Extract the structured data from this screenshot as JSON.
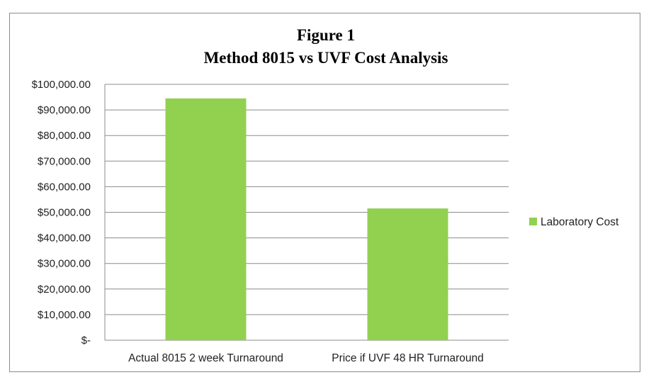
{
  "chart_data": {
    "type": "bar",
    "title": "Figure 1",
    "subtitle": "Method 8015 vs UVF Cost Analysis",
    "categories": [
      "Actual 8015 2 week Turnaround",
      "Price if UVF 48 HR Turnaround"
    ],
    "series": [
      {
        "name": "Laboratory Cost",
        "values": [
          94500,
          51500
        ],
        "color": "#92d050"
      }
    ],
    "ylim": [
      0,
      100000
    ],
    "yticks": [
      0,
      10000,
      20000,
      30000,
      40000,
      50000,
      60000,
      70000,
      80000,
      90000,
      100000
    ],
    "ytick_labels": [
      "$-",
      "$10,000.00",
      "$20,000.00",
      "$30,000.00",
      "$40,000.00",
      "$50,000.00",
      "$60,000.00",
      "$70,000.00",
      "$80,000.00",
      "$90,000.00",
      "$100,000.00"
    ],
    "xlabel": "",
    "ylabel": "",
    "grid": true,
    "legend": "right",
    "gridline_color": "#8c8c8c"
  }
}
